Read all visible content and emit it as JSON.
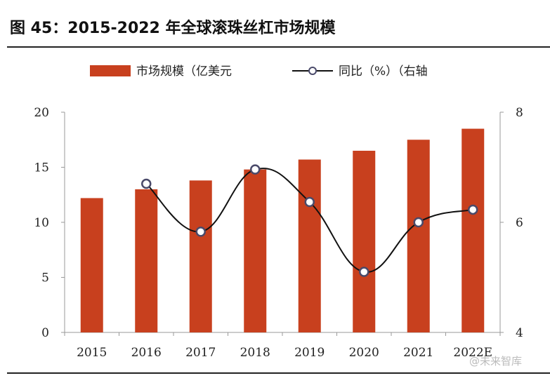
{
  "title": "图 45：2015-2022 年全球滚珠丝杠市场规模",
  "watermark": "@未来智库",
  "colors": {
    "bar": "#C8401E",
    "line": "#111111",
    "marker_edge": "#4a4a6a"
  },
  "chart_data": {
    "type": "bar+line",
    "categories": [
      "2015",
      "2016",
      "2017",
      "2018",
      "2019",
      "2020",
      "2021",
      "2022E"
    ],
    "series": [
      {
        "name": "市场规模（亿美元",
        "type": "bar",
        "axis": "left",
        "values": [
          12.2,
          13.0,
          13.8,
          14.8,
          15.7,
          16.5,
          17.5,
          18.5
        ]
      },
      {
        "name": "同比（%）（右轴",
        "type": "line",
        "axis": "right",
        "values": [
          null,
          6.7,
          5.83,
          6.96,
          6.37,
          5.1,
          6.0,
          6.23
        ]
      }
    ],
    "y_left": {
      "lim": [
        0,
        20
      ],
      "ticks": [
        "0",
        "5",
        "10",
        "15",
        "20"
      ]
    },
    "y_right": {
      "lim": [
        4,
        8
      ],
      "ticks": [
        "4",
        "6",
        "8"
      ]
    },
    "legend_position": "top",
    "grid": false
  }
}
